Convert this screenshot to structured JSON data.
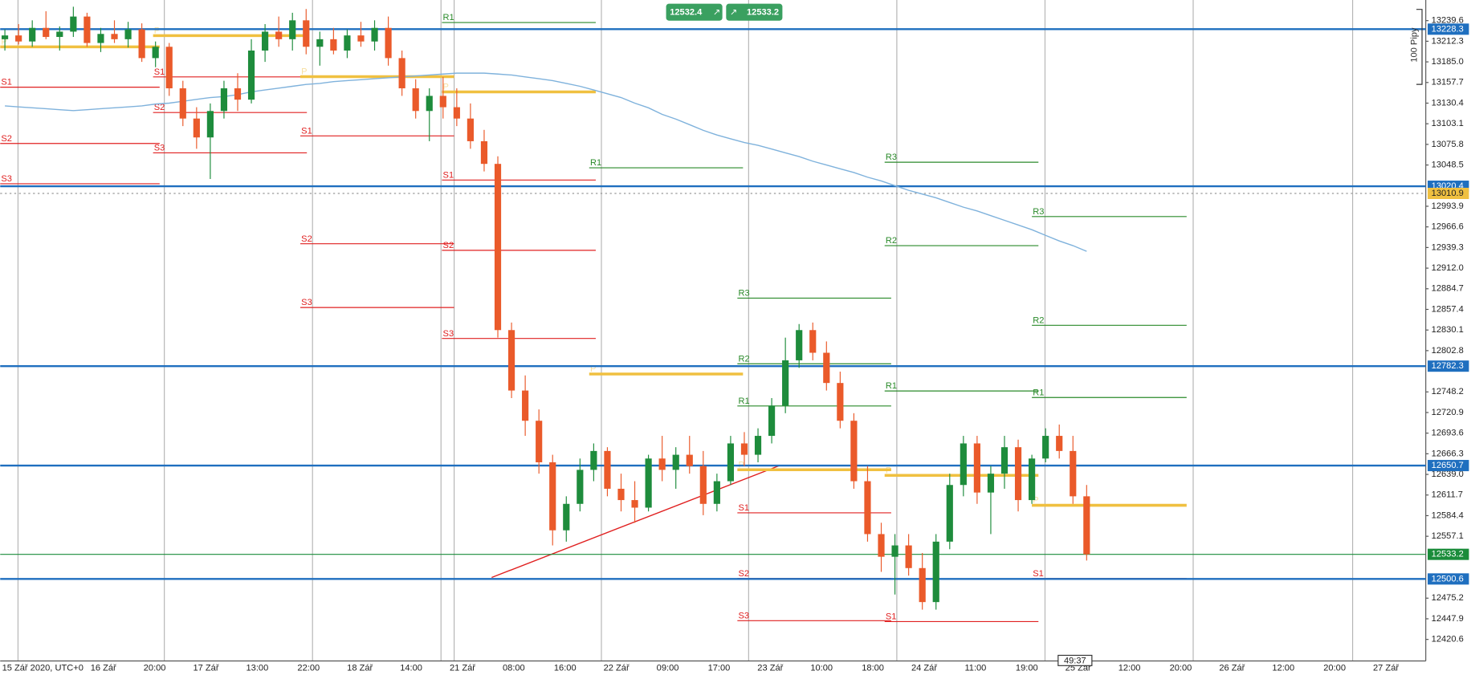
{
  "toolbar": {
    "bid": 12532.4,
    "ask": 12533.2,
    "arrow": "↗"
  },
  "countdown": "49:37",
  "pip_scale": "100 Pipy",
  "chart_data": {
    "type": "candlestick",
    "ylim": [
      12392.1,
      13266.9
    ],
    "yticks": [
      13239.6,
      13212.3,
      {
        "value": 13185.0,
        "label": "13185.0"
      },
      13157.7,
      13130.4,
      13103.1,
      13075.8,
      13048.5,
      12993.9,
      12966.6,
      12939.3,
      {
        "value": 12912.0,
        "label": "12912.0"
      },
      12884.7,
      12857.4,
      12830.1,
      12802.8,
      12748.2,
      12720.9,
      12693.6,
      12666.3,
      {
        "value": 12639.0,
        "label": "12639.0"
      },
      12611.7,
      12584.4,
      12557.1,
      12475.2,
      12447.9,
      12420.6
    ],
    "categories": [
      "15 Zář 2020, UTC+0",
      "16 Zář",
      "20:00",
      "17 Zář",
      "13:00",
      "22:00",
      "18 Zář",
      "14:00",
      "21 Zář",
      "08:00",
      "16:00",
      "22 Zář",
      "09:00",
      "17:00",
      "23 Zář",
      "10:00",
      "18:00",
      "24 Zář",
      "11:00",
      "19:00",
      "25 Zář",
      "12:00",
      "20:00",
      "26 Zář",
      "12:00",
      "20:00",
      "27 Zář"
    ],
    "up_color": "#1e8c3c",
    "down_color": "#ea5a2a",
    "ma_color": "#7fb2dc",
    "ohlc": [
      [
        13215,
        13228,
        13200,
        13220
      ],
      [
        13220,
        13235,
        13208,
        13212
      ],
      [
        13212,
        13240,
        13205,
        13230
      ],
      [
        13230,
        13252,
        13215,
        13218
      ],
      [
        13218,
        13232,
        13200,
        13225
      ],
      [
        13225,
        13258,
        13218,
        13245
      ],
      [
        13245,
        13250,
        13205,
        13210
      ],
      [
        13210,
        13230,
        13198,
        13222
      ],
      [
        13222,
        13240,
        13210,
        13215
      ],
      [
        13215,
        13238,
        13204,
        13228
      ],
      [
        13228,
        13236,
        13185,
        13190
      ],
      [
        13190,
        13212,
        13178,
        13205
      ],
      [
        13205,
        13210,
        13140,
        13150
      ],
      [
        13150,
        13160,
        13100,
        13110
      ],
      [
        13110,
        13125,
        13070,
        13085
      ],
      [
        13085,
        13130,
        13030,
        13120
      ],
      [
        13120,
        13160,
        13110,
        13150
      ],
      [
        13150,
        13170,
        13120,
        13135
      ],
      [
        13135,
        13215,
        13130,
        13200
      ],
      [
        13200,
        13235,
        13185,
        13225
      ],
      [
        13225,
        13245,
        13205,
        13215
      ],
      [
        13215,
        13250,
        13200,
        13240
      ],
      [
        13240,
        13255,
        13195,
        13205
      ],
      [
        13205,
        13225,
        13180,
        13215
      ],
      [
        13215,
        13230,
        13195,
        13200
      ],
      [
        13200,
        13228,
        13190,
        13220
      ],
      [
        13220,
        13238,
        13205,
        13212
      ],
      [
        13212,
        13240,
        13200,
        13230
      ],
      [
        13230,
        13245,
        13180,
        13190
      ],
      [
        13190,
        13200,
        13140,
        13150
      ],
      [
        13150,
        13162,
        13110,
        13120
      ],
      [
        13120,
        13150,
        13080,
        13140
      ],
      [
        13140,
        13165,
        13110,
        13125
      ],
      [
        13125,
        13150,
        13100,
        13110
      ],
      [
        13110,
        13130,
        13070,
        13080
      ],
      [
        13080,
        13095,
        13040,
        13050
      ],
      [
        13050,
        13060,
        12820,
        12830
      ],
      [
        12830,
        12840,
        12740,
        12750
      ],
      [
        12750,
        12770,
        12690,
        12710
      ],
      [
        12710,
        12725,
        12640,
        12655
      ],
      [
        12655,
        12665,
        12545,
        12565
      ],
      [
        12565,
        12610,
        12550,
        12600
      ],
      [
        12600,
        12660,
        12590,
        12645
      ],
      [
        12645,
        12680,
        12630,
        12670
      ],
      [
        12670,
        12675,
        12610,
        12620
      ],
      [
        12620,
        12640,
        12590,
        12605
      ],
      [
        12605,
        12630,
        12575,
        12595
      ],
      [
        12595,
        12665,
        12590,
        12660
      ],
      [
        12660,
        12690,
        12630,
        12645
      ],
      [
        12645,
        12675,
        12620,
        12665
      ],
      [
        12665,
        12690,
        12640,
        12650
      ],
      [
        12650,
        12670,
        12585,
        12600
      ],
      [
        12600,
        12640,
        12590,
        12630
      ],
      [
        12630,
        12690,
        12625,
        12680
      ],
      [
        12680,
        12695,
        12650,
        12665
      ],
      [
        12665,
        12700,
        12655,
        12690
      ],
      [
        12690,
        12740,
        12680,
        12730
      ],
      [
        12730,
        12820,
        12720,
        12790
      ],
      [
        12790,
        12838,
        12780,
        12830
      ],
      [
        12830,
        12840,
        12790,
        12800
      ],
      [
        12800,
        12815,
        12750,
        12760
      ],
      [
        12760,
        12775,
        12700,
        12710
      ],
      [
        12710,
        12720,
        12620,
        12630
      ],
      [
        12630,
        12650,
        12550,
        12560
      ],
      [
        12560,
        12575,
        12510,
        12530
      ],
      [
        12530,
        12560,
        12480,
        12545
      ],
      [
        12545,
        12560,
        12505,
        12515
      ],
      [
        12515,
        12535,
        12460,
        12470
      ],
      [
        12470,
        12560,
        12460,
        12550
      ],
      [
        12550,
        12640,
        12540,
        12625
      ],
      [
        12625,
        12690,
        12610,
        12680
      ],
      [
        12680,
        12690,
        12600,
        12615
      ],
      [
        12615,
        12650,
        12560,
        12640
      ],
      [
        12640,
        12690,
        12620,
        12675
      ],
      [
        12675,
        12685,
        12590,
        12605
      ],
      [
        12605,
        12665,
        12600,
        12660
      ],
      [
        12660,
        12700,
        12655,
        12690
      ],
      [
        12690,
        12705,
        12660,
        12670
      ],
      [
        12670,
        12690,
        12600,
        12610
      ],
      [
        12610,
        12625,
        12525,
        12533.2
      ]
    ],
    "moving_average": [
      13126.7,
      13125.4,
      13124.2,
      13123.0,
      13121.7,
      13120.5,
      13121.7,
      13123.0,
      13124.2,
      13125.4,
      13126.7,
      13129.2,
      13130.4,
      13132.9,
      13135.4,
      13137.8,
      13139.1,
      13141.6,
      13145.3,
      13147.8,
      13150.3,
      13152.7,
      13155.2,
      13156.5,
      13158.9,
      13160.2,
      13161.4,
      13162.7,
      13163.9,
      13165.1,
      13166.4,
      13167.6,
      13168.9,
      13170.1,
      13170.1,
      13170.1,
      13168.9,
      13167.6,
      13165.1,
      13162.7,
      13160.2,
      13156.5,
      13152.7,
      13147.8,
      13142.8,
      13137.8,
      13130.4,
      13124.2,
      13115.5,
      13109.3,
      13101.9,
      13094.4,
      13088.2,
      13083.2,
      13078.3,
      13074.6,
      13069.6,
      13064.6,
      13059.7,
      13053.5,
      13048.5,
      13043.5,
      13038.6,
      13032.4,
      13027.4,
      13021.2,
      13015.0,
      13010.0,
      13005.1,
      12998.9,
      12992.7,
      12987.7,
      12981.5,
      12975.3,
      12969.1,
      12962.9,
      12955.4,
      12948.0,
      12941.8,
      12934.3
    ],
    "levels": [
      13228.3,
      13020.4,
      12782.3,
      12650.7,
      12500.6
    ],
    "level_color": "#1f6fbf",
    "current_price": 12533.2,
    "current_color": "#1a8c3a",
    "pending_tag": 13010.9,
    "pending_color": "#f0c040",
    "sessions": [
      [
        {
          "label": "P",
          "value": 13204.9
        },
        {
          "label": "S1",
          "value": 13151.5
        },
        {
          "label": "S2",
          "value": 13077.0
        },
        {
          "label": "S3",
          "value": 13023.7
        }
      ],
      [
        {
          "label": "P",
          "value": 13219.7
        },
        {
          "label": "S1",
          "value": 13165.1
        },
        {
          "label": "S2",
          "value": 13118.0
        },
        {
          "label": "S3",
          "value": 13064.6
        }
      ],
      [
        {
          "label": "P",
          "value": 13165.4
        },
        {
          "label": "S1",
          "value": 13087.0
        },
        {
          "label": "S2",
          "value": 12944.3
        },
        {
          "label": "S3",
          "value": 12859.9
        }
      ],
      [
        {
          "label": "R1",
          "value": 13237.1
        },
        {
          "label": "P",
          "value": 13145.3
        },
        {
          "label": "S1",
          "value": 13028.6
        },
        {
          "label": "S2",
          "value": 12935.6
        },
        {
          "label": "S3",
          "value": 12818.9
        }
      ],
      [
        {
          "label": "R1",
          "value": 13044.8
        },
        {
          "label": "P",
          "value": 12771.8
        }
      ],
      [
        {
          "label": "R3",
          "value": 12872.3
        },
        {
          "label": "R2",
          "value": 12785.4
        },
        {
          "label": "R1",
          "value": 12729.6
        },
        {
          "label": "P",
          "value": 12645.2
        },
        {
          "label": "S1",
          "value": 12588.1
        },
        {
          "label": "S2",
          "value": 12501.3
        },
        {
          "label": "S3",
          "value": 12445.4
        }
      ],
      [
        {
          "label": "R3",
          "value": 13052.2
        },
        {
          "label": "R2",
          "value": 12941.8
        },
        {
          "label": "R1",
          "value": 12749.4
        },
        {
          "label": "P",
          "value": 12637.8
        },
        {
          "label": "S1",
          "value": 12444.2
        }
      ],
      [
        {
          "label": "R3",
          "value": 12980.3
        },
        {
          "label": "R2",
          "value": 12836.3
        },
        {
          "label": "R1",
          "value": 12740.8
        },
        {
          "label": "P",
          "value": 12598.1
        },
        {
          "label": "S1",
          "value": 12501.3
        }
      ]
    ]
  }
}
